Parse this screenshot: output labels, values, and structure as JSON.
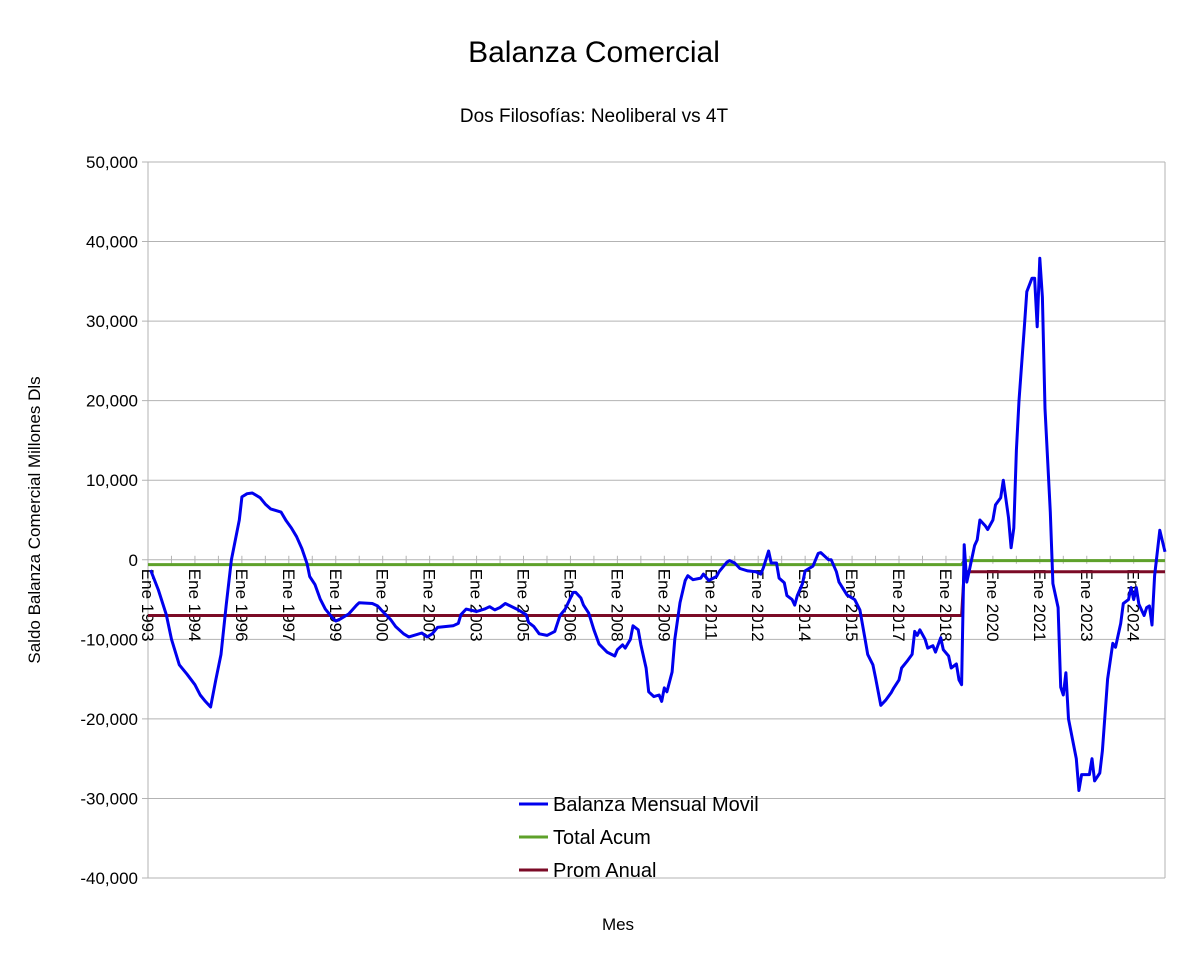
{
  "chart_data": {
    "type": "line",
    "title": "Balanza Comercial",
    "subtitle": "Dos Filosofías: Neoliberal vs 4T",
    "xlabel": "Mes",
    "ylabel": "Saldo Balanza Comercial Millones Dls",
    "ylim": [
      -40000,
      50000
    ],
    "y_ticks": [
      50000,
      40000,
      30000,
      20000,
      10000,
      0,
      -10000,
      -20000,
      -30000,
      -40000
    ],
    "y_tick_labels": [
      "50,000",
      "40,000",
      "30,000",
      "20,000",
      "10,000",
      "0",
      "-10,000",
      "-20,000",
      "-30,000",
      "-40,000"
    ],
    "x_unit": "months since Ene 1993",
    "xlim": [
      0,
      390
    ],
    "x_tick_every_months": 18,
    "x_tick_labels": [
      "Ene 1993",
      "Ene 1994",
      "Ene 1996",
      "Ene 1997",
      "Ene 1999",
      "Ene 2000",
      "Ene 2002",
      "Ene 2003",
      "Ene 2005",
      "Ene 2006",
      "Ene 2008",
      "Ene 2009",
      "Ene 2011",
      "Ene 2012",
      "Ene 2014",
      "Ene 2015",
      "Ene 2017",
      "Ene 2018",
      "Ene 2020",
      "Ene 2021",
      "Ene 2023",
      "Ene 2024"
    ],
    "grid": true,
    "legend_position": "bottom-center",
    "series": [
      {
        "name": "Balanza Mensual Movil",
        "color": "#0000ee",
        "points": [
          [
            1,
            -1300
          ],
          [
            4,
            -3800
          ],
          [
            7,
            -6900
          ],
          [
            9,
            -10000
          ],
          [
            12,
            -13200
          ],
          [
            15,
            -14400
          ],
          [
            18,
            -15700
          ],
          [
            20,
            -17000
          ],
          [
            22,
            -17800
          ],
          [
            24,
            -18500
          ],
          [
            26,
            -15100
          ],
          [
            28,
            -11900
          ],
          [
            30,
            -5700
          ],
          [
            32,
            0
          ],
          [
            35,
            5000
          ],
          [
            36,
            7900
          ],
          [
            38,
            8300
          ],
          [
            40,
            8400
          ],
          [
            43,
            7800
          ],
          [
            45,
            7000
          ],
          [
            47,
            6400
          ],
          [
            51,
            6000
          ],
          [
            53,
            4900
          ],
          [
            55,
            4000
          ],
          [
            57,
            2900
          ],
          [
            59,
            1400
          ],
          [
            61,
            -500
          ],
          [
            62,
            -2100
          ],
          [
            64,
            -3100
          ],
          [
            66,
            -4900
          ],
          [
            68,
            -6200
          ],
          [
            71,
            -7400
          ],
          [
            72,
            -7700
          ],
          [
            74,
            -7400
          ],
          [
            77,
            -6800
          ],
          [
            80,
            -5700
          ],
          [
            81,
            -5400
          ],
          [
            86,
            -5500
          ],
          [
            88,
            -5800
          ],
          [
            90,
            -6500
          ],
          [
            93,
            -7500
          ],
          [
            95,
            -8400
          ],
          [
            98,
            -9300
          ],
          [
            100,
            -9700
          ],
          [
            105,
            -9200
          ],
          [
            107,
            -9700
          ],
          [
            109,
            -9300
          ],
          [
            111,
            -8500
          ],
          [
            117,
            -8300
          ],
          [
            119,
            -8000
          ],
          [
            120,
            -6900
          ],
          [
            122,
            -6200
          ],
          [
            126,
            -6500
          ],
          [
            129,
            -6200
          ],
          [
            131,
            -5900
          ],
          [
            133,
            -6300
          ],
          [
            135,
            -6000
          ],
          [
            137,
            -5500
          ],
          [
            142,
            -6300
          ],
          [
            145,
            -6900
          ],
          [
            146,
            -7900
          ],
          [
            148,
            -8400
          ],
          [
            150,
            -9300
          ],
          [
            153,
            -9500
          ],
          [
            156,
            -9000
          ],
          [
            158,
            -7000
          ],
          [
            160,
            -6200
          ],
          [
            163,
            -4100
          ],
          [
            164,
            -4100
          ],
          [
            166,
            -4800
          ],
          [
            167,
            -5700
          ],
          [
            169,
            -6700
          ],
          [
            171,
            -8800
          ],
          [
            173,
            -10600
          ],
          [
            176,
            -11600
          ],
          [
            179,
            -12100
          ],
          [
            180,
            -11300
          ],
          [
            182,
            -10700
          ],
          [
            183,
            -11100
          ],
          [
            185,
            -10000
          ],
          [
            186,
            -8300
          ],
          [
            188,
            -8800
          ],
          [
            189,
            -10700
          ],
          [
            191,
            -13600
          ],
          [
            192,
            -16600
          ],
          [
            194,
            -17200
          ],
          [
            196,
            -17000
          ],
          [
            197,
            -17800
          ],
          [
            198,
            -16100
          ],
          [
            199,
            -16600
          ],
          [
            201,
            -14100
          ],
          [
            202,
            -10000
          ],
          [
            204,
            -5400
          ],
          [
            206,
            -2600
          ],
          [
            207,
            -2000
          ],
          [
            209,
            -2500
          ],
          [
            212,
            -2300
          ],
          [
            213,
            -1800
          ],
          [
            215,
            -2600
          ],
          [
            218,
            -2100
          ],
          [
            219,
            -1500
          ],
          [
            222,
            -300
          ],
          [
            223,
            -100
          ],
          [
            225,
            -400
          ],
          [
            227,
            -1100
          ],
          [
            230,
            -1400
          ],
          [
            233,
            -1500
          ],
          [
            235,
            -1800
          ],
          [
            236,
            -1000
          ],
          [
            238,
            1100
          ],
          [
            239,
            -400
          ],
          [
            241,
            -400
          ],
          [
            242,
            -2300
          ],
          [
            244,
            -2900
          ],
          [
            245,
            -4500
          ],
          [
            247,
            -5000
          ],
          [
            248,
            -5700
          ],
          [
            249,
            -4500
          ],
          [
            251,
            -3000
          ],
          [
            252,
            -1400
          ],
          [
            254,
            -1000
          ],
          [
            255,
            -800
          ],
          [
            257,
            800
          ],
          [
            258,
            900
          ],
          [
            261,
            0
          ],
          [
            262,
            0
          ],
          [
            264,
            -1500
          ],
          [
            265,
            -2800
          ],
          [
            268,
            -4400
          ],
          [
            271,
            -5000
          ],
          [
            273,
            -6300
          ],
          [
            275,
            -10000
          ],
          [
            276,
            -11900
          ],
          [
            278,
            -13200
          ],
          [
            279,
            -14800
          ],
          [
            281,
            -18300
          ],
          [
            283,
            -17600
          ],
          [
            285,
            -16700
          ],
          [
            286,
            -16100
          ],
          [
            288,
            -15100
          ],
          [
            289,
            -13600
          ],
          [
            291,
            -12800
          ],
          [
            293,
            -11900
          ],
          [
            294,
            -9000
          ],
          [
            295,
            -9500
          ],
          [
            296,
            -8800
          ],
          [
            298,
            -10000
          ],
          [
            299,
            -11100
          ],
          [
            301,
            -10800
          ],
          [
            302,
            -11600
          ],
          [
            304,
            -9800
          ],
          [
            305,
            -11300
          ],
          [
            307,
            -12100
          ],
          [
            308,
            -13600
          ],
          [
            310,
            -13100
          ],
          [
            311,
            -15100
          ],
          [
            312,
            -15700
          ],
          [
            313,
            1900
          ],
          [
            314,
            -2800
          ],
          [
            315,
            -1300
          ],
          [
            317,
            1800
          ],
          [
            318,
            2500
          ],
          [
            319,
            5000
          ],
          [
            321,
            4300
          ],
          [
            322,
            3800
          ],
          [
            324,
            5000
          ],
          [
            325,
            6900
          ],
          [
            327,
            7800
          ],
          [
            328,
            10000
          ],
          [
            330,
            5300
          ],
          [
            331,
            1500
          ],
          [
            332,
            4000
          ],
          [
            333,
            13800
          ],
          [
            334,
            20000
          ],
          [
            336,
            29000
          ],
          [
            337,
            33700
          ],
          [
            339,
            35400
          ],
          [
            340,
            35400
          ],
          [
            341,
            29300
          ],
          [
            342,
            37900
          ],
          [
            343,
            33000
          ],
          [
            344,
            19000
          ],
          [
            346,
            6000
          ],
          [
            347,
            -3000
          ],
          [
            349,
            -6000
          ],
          [
            350,
            -16000
          ],
          [
            351,
            -17000
          ],
          [
            352,
            -14200
          ],
          [
            353,
            -20000
          ],
          [
            356,
            -25000
          ],
          [
            357,
            -29000
          ],
          [
            358,
            -27000
          ],
          [
            361,
            -27000
          ],
          [
            362,
            -25000
          ],
          [
            363,
            -27800
          ],
          [
            365,
            -26800
          ],
          [
            366,
            -24000
          ],
          [
            368,
            -15000
          ],
          [
            370,
            -10500
          ],
          [
            371,
            -11000
          ],
          [
            373,
            -8000
          ],
          [
            374,
            -5500
          ],
          [
            376,
            -5000
          ],
          [
            377,
            -3500
          ],
          [
            378,
            -5000
          ],
          [
            379,
            -3500
          ],
          [
            380,
            -5600
          ],
          [
            382,
            -7000
          ],
          [
            383,
            -6000
          ],
          [
            384,
            -5800
          ],
          [
            385,
            -8200
          ],
          [
            386,
            -2000
          ],
          [
            388,
            3700
          ],
          [
            390,
            1000
          ]
        ]
      },
      {
        "name": "Total Acum",
        "color": "#5ea12a",
        "points": [
          [
            0,
            -600
          ],
          [
            312,
            -600
          ],
          [
            313,
            -100
          ],
          [
            390,
            -100
          ]
        ]
      },
      {
        "name": "Prom Anual",
        "color": "#7b0a26",
        "points": [
          [
            0,
            -7000
          ],
          [
            312,
            -7000
          ],
          [
            313,
            -1500
          ],
          [
            390,
            -1500
          ]
        ]
      }
    ]
  }
}
